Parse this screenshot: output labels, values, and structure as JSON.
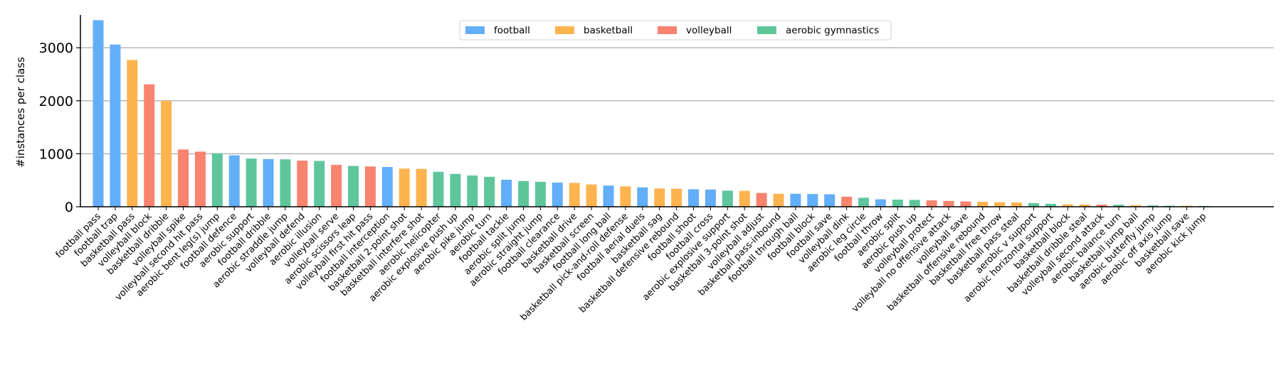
{
  "chart_data": {
    "type": "bar",
    "title": "",
    "xlabel": "",
    "ylabel": "#instances per class",
    "ylim": [
      0,
      3700
    ],
    "yticks": [
      0,
      1000,
      2000,
      3000
    ],
    "grid": "horizontal",
    "legend_position": "top-center",
    "colors": {
      "football": "#62aef8",
      "basketball": "#fdb44f",
      "volleyball": "#f8836f",
      "aerobic gymnastics": "#5fc69c"
    },
    "series": [
      {
        "name": "football"
      },
      {
        "name": "basketball"
      },
      {
        "name": "volleyball"
      },
      {
        "name": "aerobic gymnastics"
      }
    ],
    "categories": [
      "football pass",
      "football trap",
      "basketball pass",
      "volleyball block",
      "basketball dribble",
      "volleyball spike",
      "volleyball second hit pass",
      "aerobic bent leg(s) jump",
      "football defence",
      "aerobic support",
      "football dribble",
      "aerobic straddle jump",
      "volleyball defend",
      "aerobic illusion",
      "volleyball serve",
      "aerobic scissors leap",
      "volleyball first hit pass",
      "football interception",
      "basketball 2-point shot",
      "basketball interfere shot",
      "aerobic helicopter",
      "aerobic explosive push up",
      "aerobic pike jump",
      "aerobic turn",
      "football tackle",
      "aerobic split jump",
      "aerobic straight jump",
      "football clearance",
      "basketball drive",
      "basketball screen",
      "football long ball",
      "basketball pick-and-roll defense",
      "football aerial duels",
      "basketball sag",
      "basketball defensive rebound",
      "football shoot",
      "football cross",
      "aerobic explosive support",
      "basketball 3-point shot",
      "volleyball adjust",
      "basketball pass-inbound",
      "football through ball",
      "football block",
      "football save",
      "volleyball dink",
      "aerobic leg circle",
      "football throw",
      "aerobic split",
      "aerobic push up",
      "volleyball protect",
      "volleyball no offensive attack",
      "volleyball save",
      "basketball offensive rebound",
      "basketball free throw",
      "basketball pass steal",
      "aerobic v support",
      "aerobic horizontal support",
      "basketball block",
      "basketball dribble steal",
      "volleyball second attack",
      "aerobic balance turn",
      "basketball jump ball",
      "aerobic butterfly jump",
      "aerobic off axis jump",
      "basketball save",
      "aerobic kick jump"
    ],
    "category_series": [
      "football",
      "football",
      "basketball",
      "volleyball",
      "basketball",
      "volleyball",
      "volleyball",
      "aerobic gymnastics",
      "football",
      "aerobic gymnastics",
      "football",
      "aerobic gymnastics",
      "volleyball",
      "aerobic gymnastics",
      "volleyball",
      "aerobic gymnastics",
      "volleyball",
      "football",
      "basketball",
      "basketball",
      "aerobic gymnastics",
      "aerobic gymnastics",
      "aerobic gymnastics",
      "aerobic gymnastics",
      "football",
      "aerobic gymnastics",
      "aerobic gymnastics",
      "football",
      "basketball",
      "basketball",
      "football",
      "basketball",
      "football",
      "basketball",
      "basketball",
      "football",
      "football",
      "aerobic gymnastics",
      "basketball",
      "volleyball",
      "basketball",
      "football",
      "football",
      "football",
      "volleyball",
      "aerobic gymnastics",
      "football",
      "aerobic gymnastics",
      "aerobic gymnastics",
      "volleyball",
      "volleyball",
      "volleyball",
      "basketball",
      "basketball",
      "basketball",
      "aerobic gymnastics",
      "aerobic gymnastics",
      "basketball",
      "basketball",
      "volleyball",
      "aerobic gymnastics",
      "basketball",
      "aerobic gymnastics",
      "aerobic gymnastics",
      "basketball",
      "aerobic gymnastics"
    ],
    "values": [
      3520,
      3060,
      2770,
      2310,
      2000,
      1080,
      1040,
      1010,
      970,
      910,
      900,
      895,
      870,
      865,
      790,
      770,
      760,
      750,
      720,
      715,
      660,
      620,
      590,
      565,
      510,
      485,
      470,
      455,
      450,
      420,
      400,
      385,
      365,
      345,
      340,
      330,
      325,
      305,
      300,
      260,
      245,
      245,
      240,
      235,
      190,
      170,
      140,
      135,
      130,
      120,
      110,
      100,
      95,
      85,
      80,
      70,
      55,
      45,
      42,
      40,
      38,
      30,
      25,
      20,
      18,
      15
    ]
  }
}
